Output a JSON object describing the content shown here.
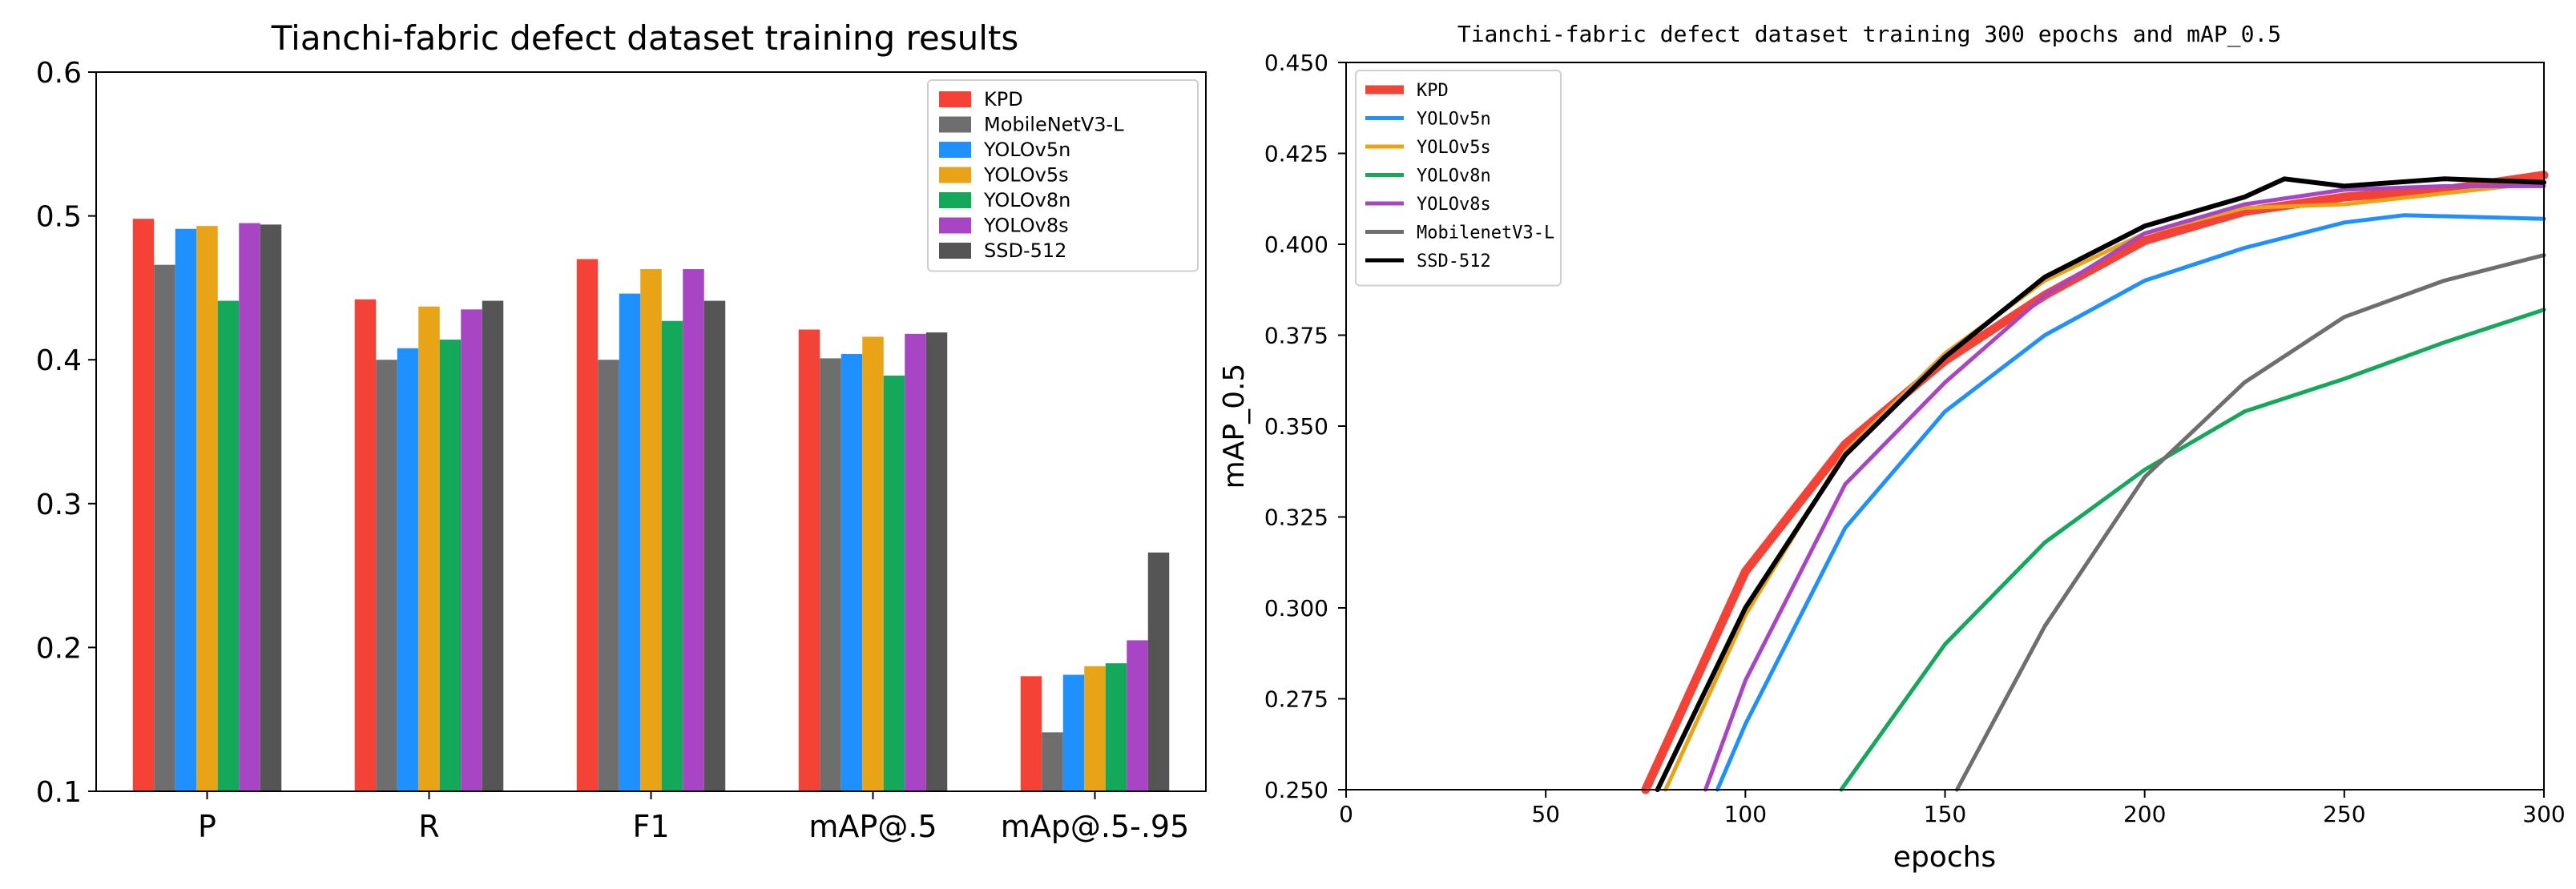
{
  "chart_data": [
    {
      "type": "bar",
      "title": "Tianchi-fabric defect dataset training results",
      "xlabel": "",
      "ylabel": "",
      "ylim": [
        0.1,
        0.6
      ],
      "yticks": [
        "0.1",
        "0.2",
        "0.3",
        "0.4",
        "0.5",
        "0.6"
      ],
      "categories": [
        "P",
        "R",
        "F1",
        "mAP@.5",
        "mAp@.5-.95"
      ],
      "legend_position": "top-right",
      "series": [
        {
          "name": "KPD",
          "color": "#f44336",
          "values": [
            0.498,
            0.442,
            0.47,
            0.421,
            0.18
          ]
        },
        {
          "name": "MobileNetV3-L",
          "color": "#6e6e6e",
          "values": [
            0.466,
            0.4,
            0.4,
            0.401,
            0.141
          ]
        },
        {
          "name": "YOLOv5n",
          "color": "#1e90ff",
          "values": [
            0.491,
            0.408,
            0.446,
            0.404,
            0.181
          ]
        },
        {
          "name": "YOLOv5s",
          "color": "#e8a317",
          "values": [
            0.493,
            0.437,
            0.463,
            0.416,
            0.187
          ]
        },
        {
          "name": "YOLOv8n",
          "color": "#13a85a",
          "values": [
            0.441,
            0.414,
            0.427,
            0.389,
            0.189
          ]
        },
        {
          "name": "YOLOv8s",
          "color": "#a845c4",
          "values": [
            0.495,
            0.435,
            0.463,
            0.418,
            0.205
          ]
        },
        {
          "name": "SSD-512",
          "color": "#555555",
          "values": [
            0.494,
            0.441,
            0.441,
            0.419,
            0.266
          ]
        }
      ]
    },
    {
      "type": "line",
      "title": "Tianchi-fabric defect dataset training 300 epochs and mAP_0.5",
      "xlabel": "epochs",
      "ylabel": "mAP_0.5",
      "xlim": [
        0,
        300
      ],
      "ylim": [
        0.25,
        0.45
      ],
      "xticks": [
        "0",
        "50",
        "100",
        "150",
        "200",
        "250",
        "300"
      ],
      "yticks": [
        "0.250",
        "0.275",
        "0.300",
        "0.325",
        "0.350",
        "0.375",
        "0.400",
        "0.425",
        "0.450"
      ],
      "legend_position": "top-left",
      "series": [
        {
          "name": "KPD",
          "color": "#f44336",
          "x": [
            75,
            100,
            125,
            150,
            175,
            200,
            225,
            250,
            275,
            300
          ],
          "y": [
            0.25,
            0.31,
            0.345,
            0.368,
            0.386,
            0.401,
            0.409,
            0.413,
            0.415,
            0.419
          ]
        },
        {
          "name": "YOLOv5n",
          "color": "#1e90ff",
          "x": [
            93,
            100,
            125,
            150,
            175,
            200,
            225,
            250,
            265,
            300
          ],
          "y": [
            0.25,
            0.268,
            0.322,
            0.354,
            0.375,
            0.39,
            0.399,
            0.406,
            0.408,
            0.407
          ]
        },
        {
          "name": "YOLOv5s",
          "color": "#e8a317",
          "x": [
            80,
            100,
            125,
            150,
            175,
            200,
            225,
            250,
            275,
            300
          ],
          "y": [
            0.25,
            0.298,
            0.343,
            0.37,
            0.39,
            0.403,
            0.41,
            0.411,
            0.414,
            0.417
          ]
        },
        {
          "name": "YOLOv8n",
          "color": "#13a85a",
          "x": [
            124,
            150,
            175,
            200,
            225,
            250,
            275,
            300
          ],
          "y": [
            0.25,
            0.29,
            0.318,
            0.338,
            0.354,
            0.363,
            0.373,
            0.382
          ]
        },
        {
          "name": "YOLOv8s",
          "color": "#a845c4",
          "x": [
            90,
            100,
            125,
            150,
            175,
            200,
            225,
            250,
            275,
            300
          ],
          "y": [
            0.25,
            0.28,
            0.334,
            0.362,
            0.386,
            0.403,
            0.411,
            0.415,
            0.416,
            0.416
          ]
        },
        {
          "name": "MobilenetV3-L",
          "color": "#6e6e6e",
          "x": [
            153,
            175,
            200,
            225,
            250,
            275,
            300
          ],
          "y": [
            0.25,
            0.295,
            0.336,
            0.362,
            0.38,
            0.39,
            0.397
          ]
        },
        {
          "name": "SSD-512",
          "color": "#000000",
          "x": [
            78,
            100,
            125,
            150,
            175,
            200,
            225,
            235,
            250,
            275,
            300
          ],
          "y": [
            0.25,
            0.3,
            0.342,
            0.369,
            0.391,
            0.405,
            0.413,
            0.418,
            0.416,
            0.418,
            0.417
          ]
        }
      ]
    }
  ]
}
